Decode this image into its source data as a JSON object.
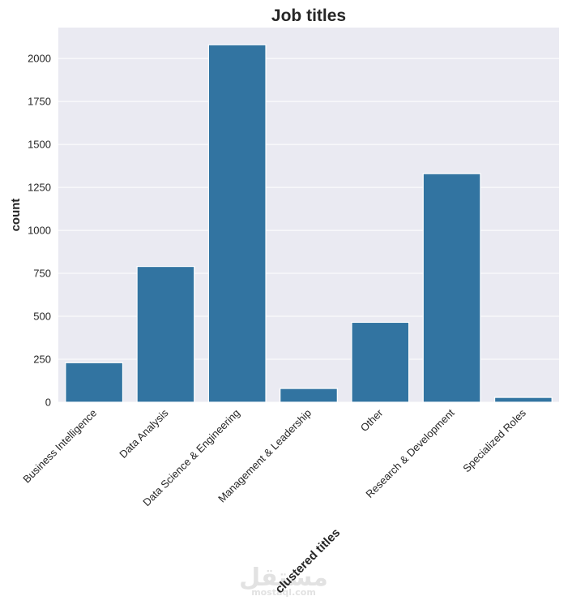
{
  "chart_data": {
    "type": "bar",
    "title": "Job titles",
    "xlabel": "clustered titles",
    "ylabel": "count",
    "categories": [
      "Business Intelligence",
      "Data Analysis",
      "Data Science & Engineering",
      "Management & Leadership",
      "Other",
      "Research & Development",
      "Specialized Roles"
    ],
    "values": [
      230,
      790,
      2080,
      80,
      465,
      1330,
      28
    ],
    "ylim": [
      0,
      2180
    ],
    "yticks": [
      0,
      250,
      500,
      750,
      1000,
      1250,
      1500,
      1750,
      2000
    ],
    "grid": true,
    "colors": {
      "bar": "#3274a1",
      "plot_background": "#eaeaf2",
      "grid": "#ffffff",
      "text": "#262626"
    }
  },
  "watermark": {
    "arabic": "مستقل",
    "latin": "mostaql.com"
  }
}
